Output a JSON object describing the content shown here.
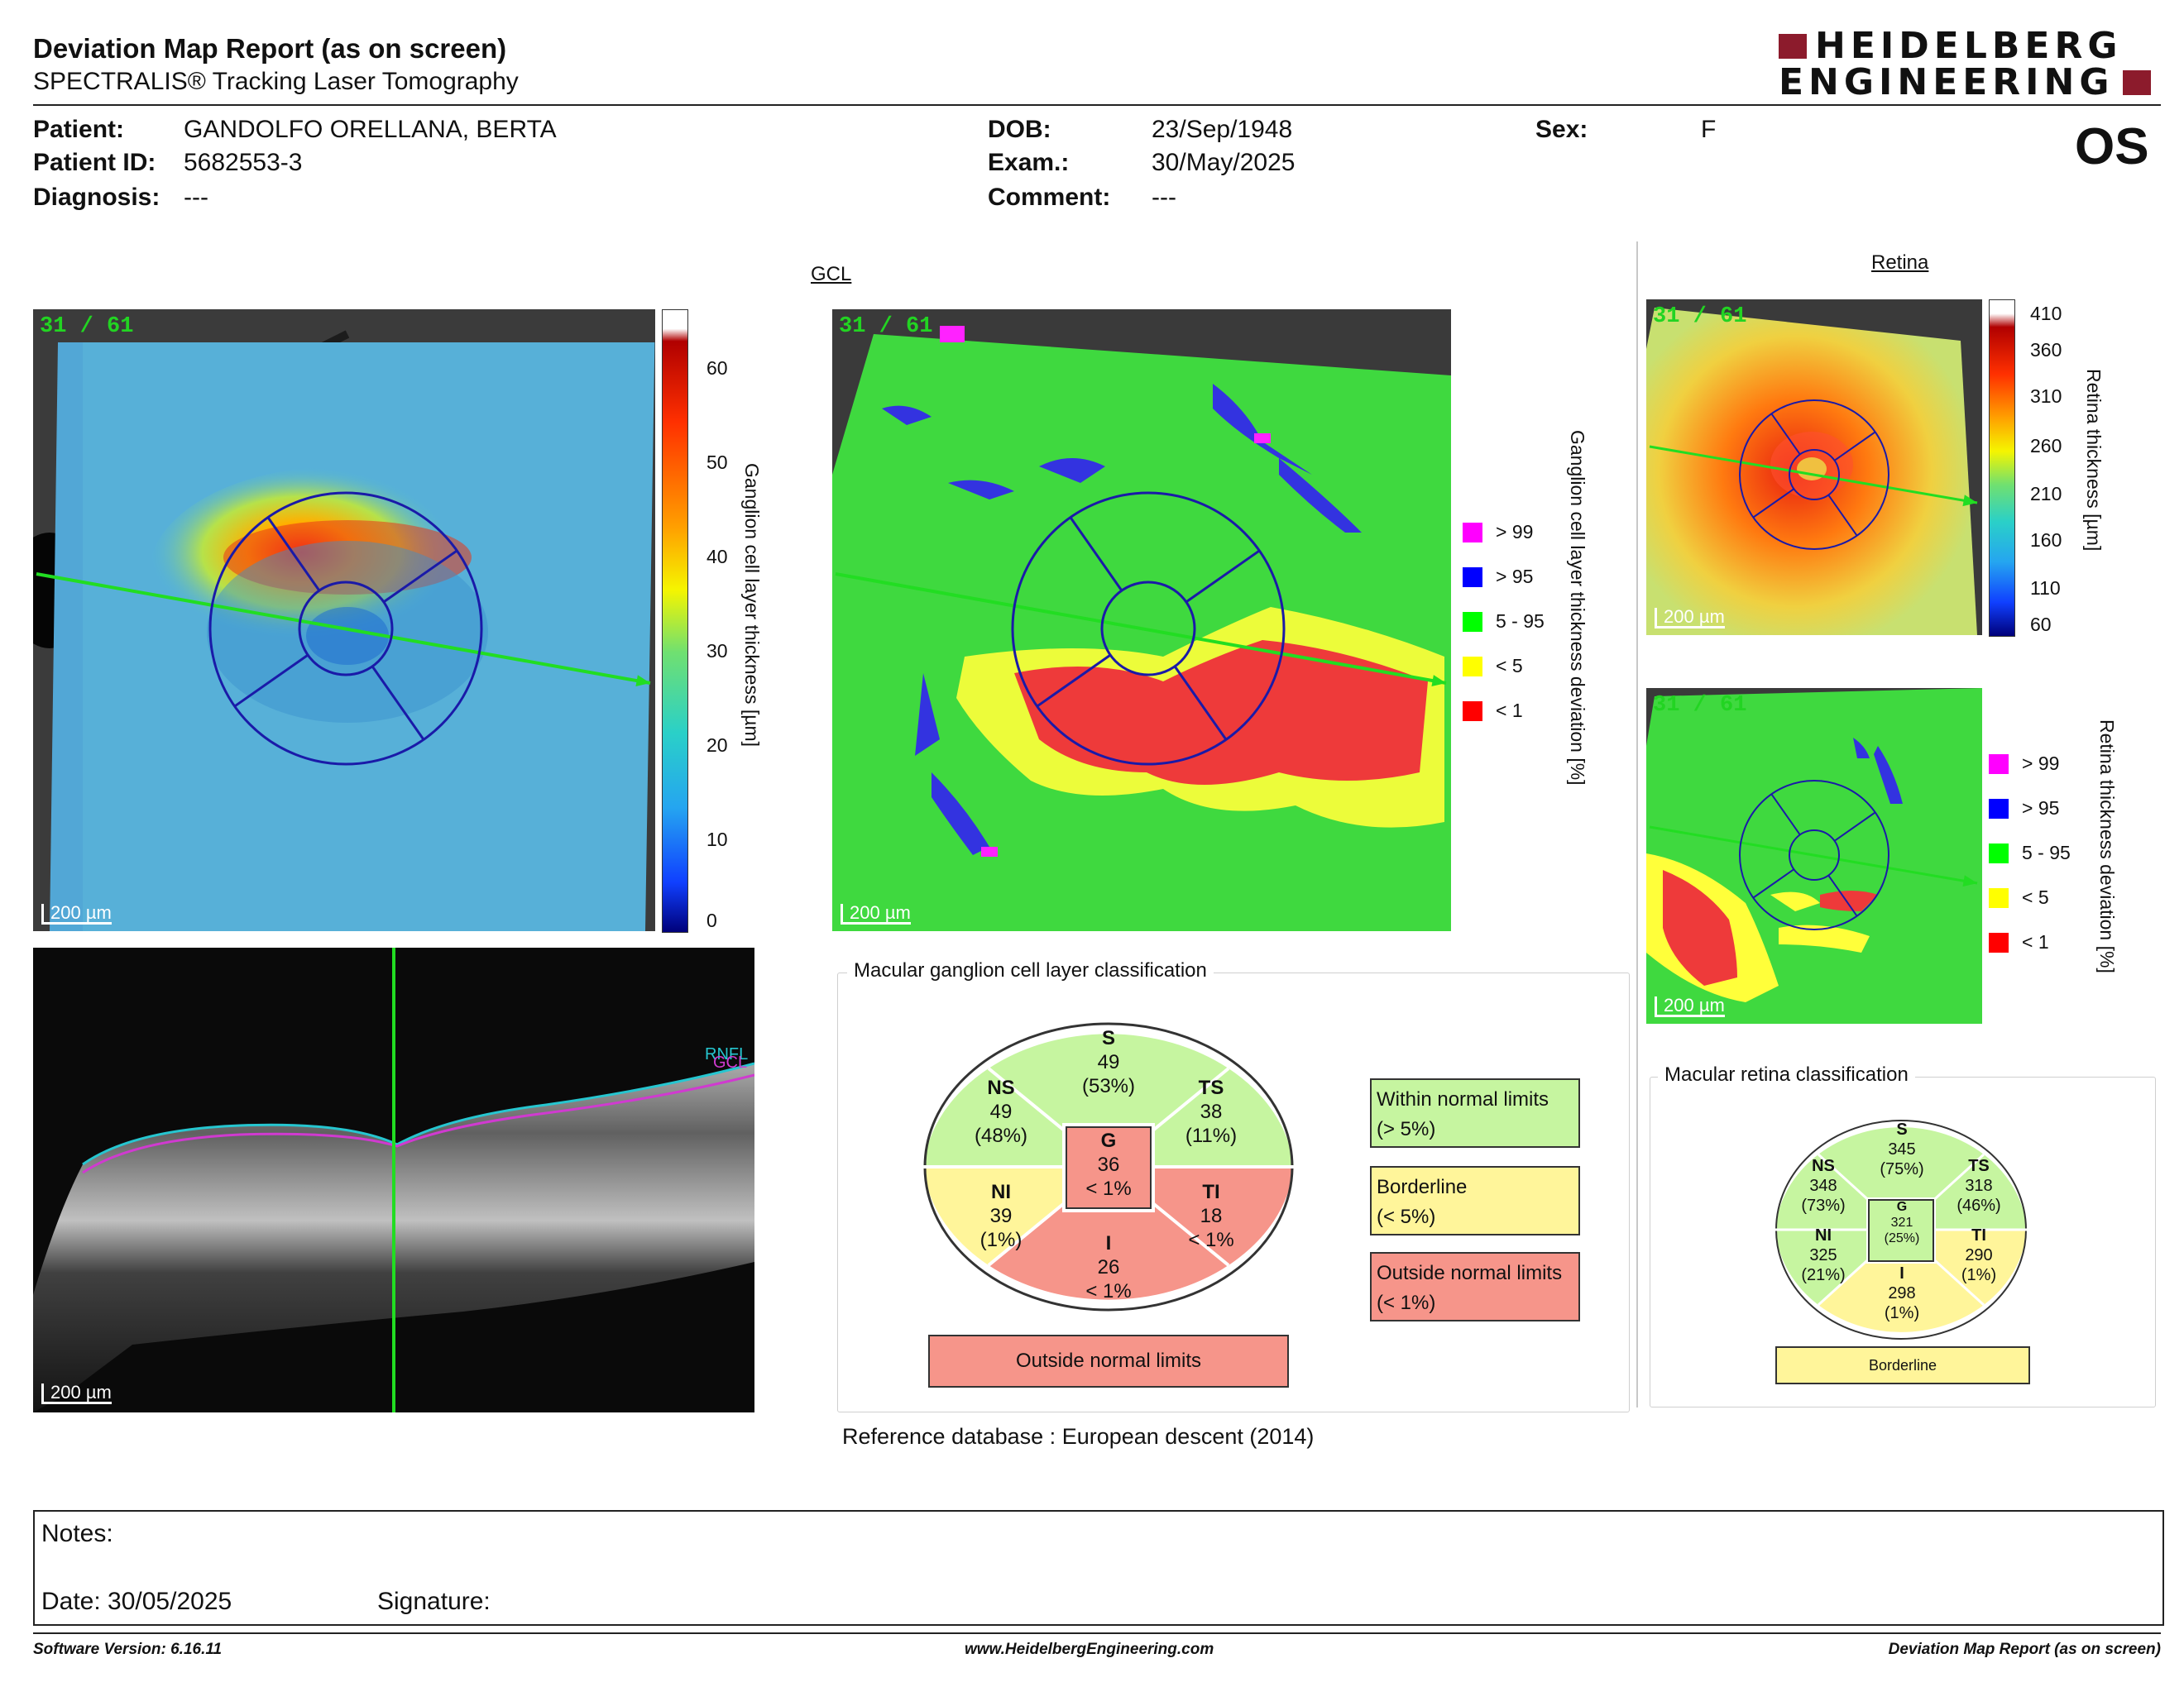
{
  "report": {
    "title": "Deviation Map Report (as on screen)",
    "subtitle": "SPECTRALIS® Tracking Laser Tomography",
    "brand_line1": "HEIDELBERG",
    "brand_line2": "ENGINEERING",
    "eye": "OS"
  },
  "patient": {
    "name_label": "Patient:",
    "name": "GANDOLFO ORELLANA, BERTA",
    "id_label": "Patient ID:",
    "id": "5682553-3",
    "diagnosis_label": "Diagnosis:",
    "diagnosis": "---",
    "dob_label": "DOB:",
    "dob": "23/Sep/1948",
    "exam_label": "Exam.:",
    "exam": "30/May/2025",
    "comment_label": "Comment:",
    "comment": "---",
    "sex_label": "Sex:",
    "sex": "F"
  },
  "gcl": {
    "section_label": "GCL",
    "slice": "31 / 61",
    "scale": "200 µm",
    "thickness_axis_label": "Ganglion cell layer thickness [µm]",
    "thickness_ticks": [
      "60",
      "50",
      "40",
      "30",
      "20",
      "10",
      "0"
    ],
    "deviation_axis_label": "Ganglion cell layer thickness deviation [%]",
    "bscan_layers": {
      "rnfl": "RNFL",
      "gcl": "GCL"
    }
  },
  "deviation_legend": [
    {
      "label": "> 99",
      "color": "#ff00ff"
    },
    {
      "label": "> 95",
      "color": "#0000ff"
    },
    {
      "label": "5 - 95",
      "color": "#00ff00"
    },
    {
      "label": "< 5",
      "color": "#ffff00"
    },
    {
      "label": "< 1",
      "color": "#ff0000"
    }
  ],
  "gcl_classification": {
    "title": "Macular ganglion cell layer classification",
    "sectors": {
      "S": {
        "name": "S",
        "value": "49",
        "pct": "(53%)",
        "status": "normal"
      },
      "NS": {
        "name": "NS",
        "value": "49",
        "pct": "(48%)",
        "status": "normal"
      },
      "TS": {
        "name": "TS",
        "value": "38",
        "pct": "(11%)",
        "status": "normal"
      },
      "NI": {
        "name": "NI",
        "value": "39",
        "pct": "(1%)",
        "status": "borderline"
      },
      "TI": {
        "name": "TI",
        "value": "18",
        "pct": "< 1%",
        "status": "outside"
      },
      "I": {
        "name": "I",
        "value": "26",
        "pct": "< 1%",
        "status": "outside"
      },
      "G": {
        "name": "G",
        "value": "36",
        "pct": "< 1%",
        "status": "outside"
      }
    },
    "overall": "Outside normal limits",
    "legend": {
      "within_1": "Within normal limits",
      "within_2": "(> 5%)",
      "border_1": "Borderline",
      "border_2": "(< 5%)",
      "outside_1": "Outside normal limits",
      "outside_2": "(< 1%)"
    },
    "reference_label": "Reference database",
    "reference_value": "European descent (2014)"
  },
  "retina": {
    "section_label": "Retina",
    "slice": "31 / 61",
    "scale": "200 µm",
    "thickness_axis_label": "Retina thickness [µm]",
    "thickness_ticks": [
      "410",
      "360",
      "310",
      "260",
      "210",
      "160",
      "110",
      "60"
    ],
    "deviation_axis_label": "Retina thickness deviation [%]"
  },
  "retina_classification": {
    "title": "Macular retina classification",
    "sectors": {
      "S": {
        "name": "S",
        "value": "345",
        "pct": "(75%)",
        "status": "normal"
      },
      "NS": {
        "name": "NS",
        "value": "348",
        "pct": "(73%)",
        "status": "normal"
      },
      "TS": {
        "name": "TS",
        "value": "318",
        "pct": "(46%)",
        "status": "normal"
      },
      "NI": {
        "name": "NI",
        "value": "325",
        "pct": "(21%)",
        "status": "normal"
      },
      "TI": {
        "name": "TI",
        "value": "290",
        "pct": "(1%)",
        "status": "borderline"
      },
      "I": {
        "name": "I",
        "value": "298",
        "pct": "(1%)",
        "status": "borderline"
      },
      "G": {
        "name": "G",
        "value": "321",
        "pct": "(25%)",
        "status": "normal"
      }
    },
    "overall": "Borderline"
  },
  "colors": {
    "normal": "#c6f5a0",
    "borderline": "#fff59a",
    "outside": "#f6958a",
    "brand": "#8c1b2c",
    "scan_line": "#22dd22",
    "grid": "#1a1aa8"
  },
  "notes": {
    "notes_label": "Notes:",
    "date_label": "Date: 30/05/2025",
    "signature_label": "Signature:"
  },
  "footer": {
    "software": "Software Version: 6.16.11",
    "website": "www.HeidelbergEngineering.com",
    "report_name": "Deviation Map Report (as on screen)"
  }
}
